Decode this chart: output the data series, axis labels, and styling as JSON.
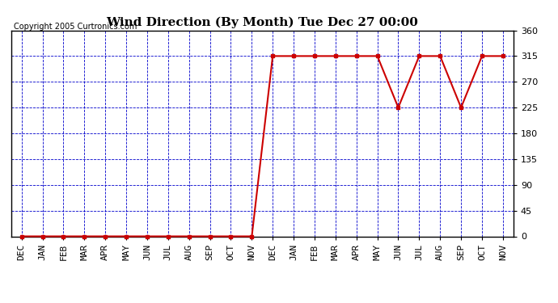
{
  "title": "Wind Direction (By Month) Tue Dec 27 00:00",
  "copyright": "Copyright 2005 Curtronics.com",
  "x_labels": [
    "DEC",
    "JAN",
    "FEB",
    "MAR",
    "APR",
    "MAY",
    "JUN",
    "JUL",
    "AUG",
    "SEP",
    "OCT",
    "NOV",
    "DEC",
    "JAN",
    "FEB",
    "MAR",
    "APR",
    "MAY",
    "JUN",
    "JUL",
    "AUG",
    "SEP",
    "OCT",
    "NOV"
  ],
  "y_values": [
    0,
    0,
    0,
    0,
    0,
    0,
    0,
    0,
    0,
    0,
    0,
    0,
    315,
    315,
    315,
    315,
    315,
    315,
    225,
    315,
    315,
    225,
    315,
    315
  ],
  "y_ticks": [
    0,
    45,
    90,
    135,
    180,
    225,
    270,
    315,
    360
  ],
  "ylim": [
    0,
    360
  ],
  "line_color": "#cc0000",
  "marker": "s",
  "marker_size": 3,
  "grid_color": "#0000cc",
  "background_color": "#ffffff",
  "border_color": "#000000",
  "title_fontsize": 11,
  "copyright_fontsize": 7,
  "tick_fontsize": 8,
  "ytick_fontsize": 8
}
